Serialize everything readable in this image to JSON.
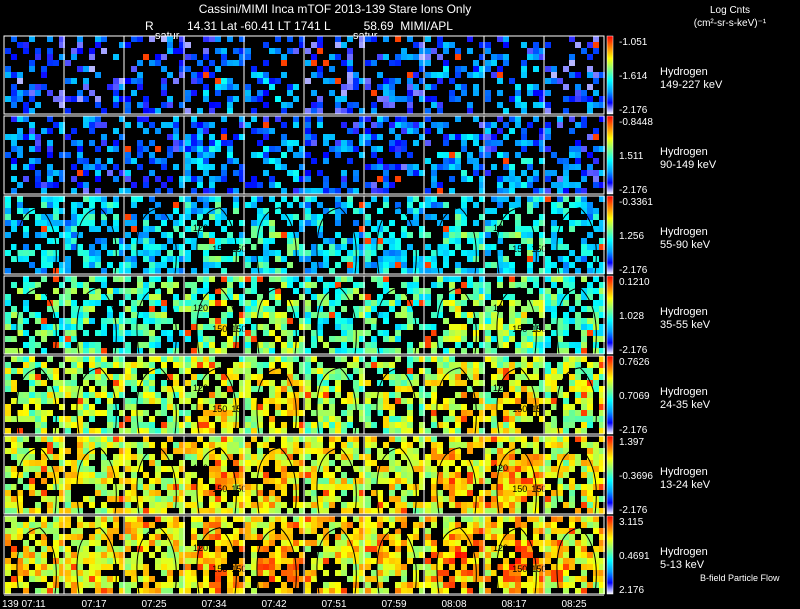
{
  "header": {
    "title": "Cassini/MIMI Inca mTOF  2013-139   Stare   Ions Only",
    "ephemeris_line": "R          14.31 Lat -60.41 LT 1741 L          58.69  MIMI/APL",
    "frame_tags": [
      "satur",
      "satur"
    ],
    "units_line1": "Log Cnts",
    "units_line2": "(cm²-sr-s-keV)⁻¹"
  },
  "chart_data": {
    "type": "heatmap",
    "title": "Cassini/MIMI Inca mTOF  2013-139   Stare   Ions Only",
    "xlabel": "",
    "time_ticks": [
      "139 07:11",
      "07:17",
      "07:25",
      "07:34",
      "07:42",
      "07:51",
      "07:59",
      "08:08",
      "08:17",
      "08:25"
    ],
    "frames_per_panel": 10,
    "grid": true,
    "colorbar": {
      "colors": [
        "#ffffff",
        "#0000ff",
        "#00a0ff",
        "#00ffff",
        "#80ff80",
        "#ffff00",
        "#ff8000",
        "#ff0000"
      ]
    },
    "contour_labels": [
      "120",
      "150",
      "150"
    ],
    "panels": [
      {
        "species": "Hydrogen",
        "energy": "149-227 keV",
        "cmax": "-1.051",
        "cmid": "-1.614",
        "cmin": "-2.176",
        "level": 0.08
      },
      {
        "species": "Hydrogen",
        "energy": "90-149 keV",
        "cmax": "-0.8448",
        "cmid": "1.511",
        "cmin": "-2.176",
        "level": 0.12
      },
      {
        "species": "Hydrogen",
        "energy": "55-90 keV",
        "cmax": "-0.3361",
        "cmid": "1.256",
        "cmin": "-2.176",
        "level": 0.3
      },
      {
        "species": "Hydrogen",
        "energy": "35-55 keV",
        "cmax": "0.1210",
        "cmid": "1.028",
        "cmin": "-2.176",
        "level": 0.45
      },
      {
        "species": "Hydrogen",
        "energy": "24-35 keV",
        "cmax": "0.7626",
        "cmid": "0.7069",
        "cmin": "-2.176",
        "level": 0.58
      },
      {
        "species": "Hydrogen",
        "energy": "13-24 keV",
        "cmax": "1.397",
        "cmid": "-0.3696",
        "cmin": "-2.176",
        "level": 0.66
      },
      {
        "species": "Hydrogen",
        "energy": "5-13 keV",
        "cmax": "3.115",
        "cmid": "0.4691",
        "cmin": "2.176",
        "level": 0.7
      }
    ]
  },
  "footnote": "B-field Particle Flow"
}
